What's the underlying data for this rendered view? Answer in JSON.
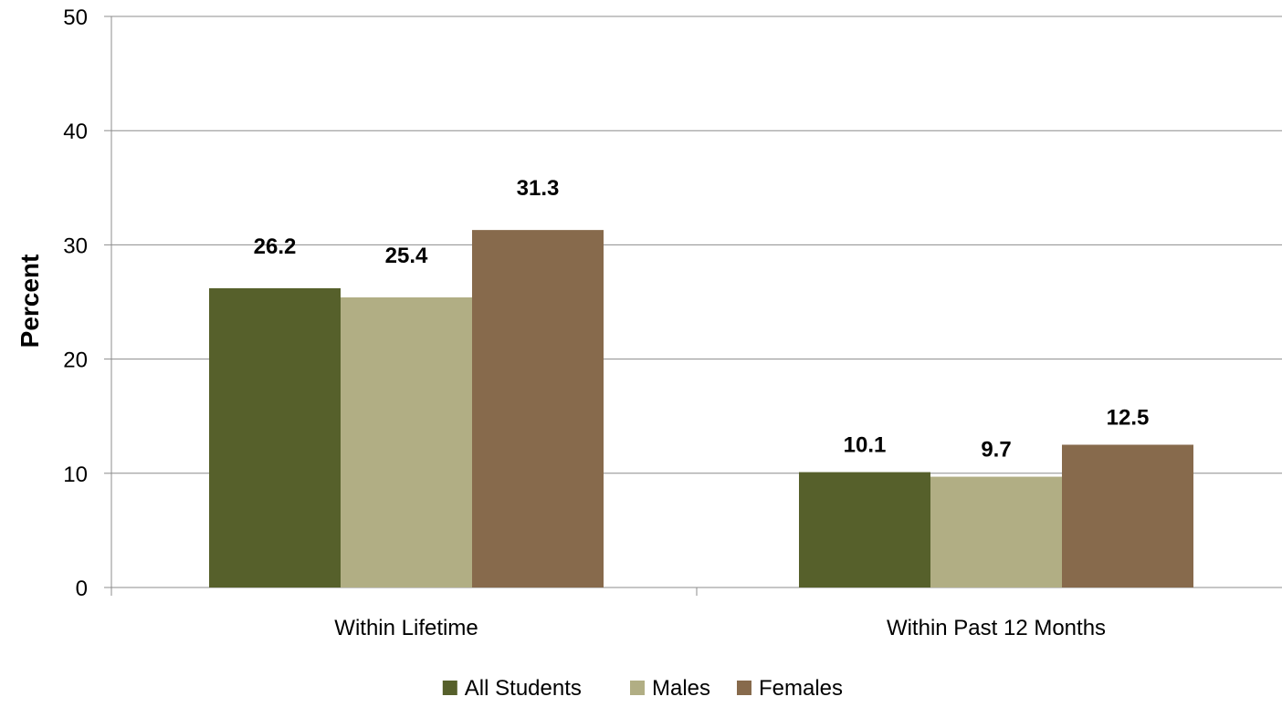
{
  "chart_data": {
    "type": "bar",
    "title": "",
    "xlabel": "",
    "ylabel": "Percent",
    "ylim": [
      0,
      50
    ],
    "yticks": [
      0,
      10,
      20,
      30,
      40,
      50
    ],
    "grid": true,
    "legend_position": "bottom",
    "categories": [
      "Within Lifetime",
      "Within Past 12 Months"
    ],
    "series": [
      {
        "name": "All Students",
        "color": "#56602b",
        "values": [
          26.2,
          10.1
        ],
        "labels": [
          "26.2",
          "10.1"
        ]
      },
      {
        "name": "Males",
        "color": "#b1ae84",
        "values": [
          25.4,
          9.7
        ],
        "labels": [
          "25.4",
          "9.7"
        ]
      },
      {
        "name": "Females",
        "color": "#876a4c",
        "values": [
          31.3,
          12.5
        ],
        "labels": [
          "31.3",
          "12.5"
        ]
      }
    ]
  }
}
